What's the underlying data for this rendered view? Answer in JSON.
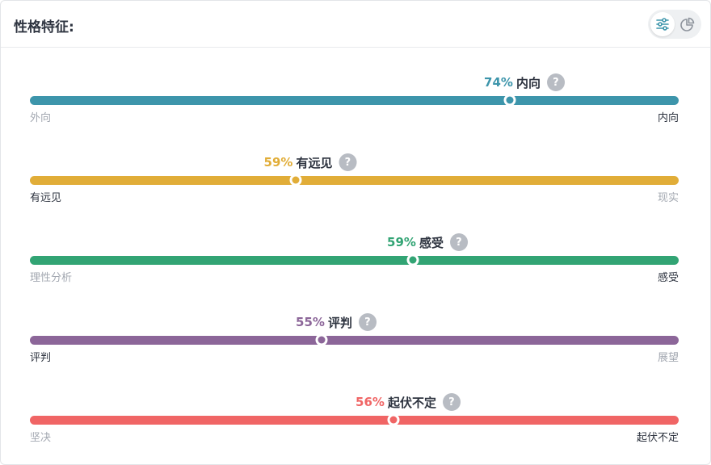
{
  "header": {
    "title": "性格特征:",
    "view_buttons": [
      {
        "icon": "sliders-icon",
        "active": true
      },
      {
        "icon": "pie-chart-icon",
        "active": false
      }
    ]
  },
  "traits": [
    {
      "percent": "74%",
      "value": 0.74,
      "label": "内向",
      "left": "外向",
      "right": "内向",
      "color": "#3d95ab",
      "emphasis": "right"
    },
    {
      "percent": "59%",
      "value": 0.41,
      "label": "有远见",
      "left": "有远见",
      "right": "现实",
      "color": "#e1ad38",
      "emphasis": "left"
    },
    {
      "percent": "59%",
      "value": 0.59,
      "label": "感受",
      "left": "理性分析",
      "right": "感受",
      "color": "#32a474",
      "emphasis": "right"
    },
    {
      "percent": "55%",
      "value": 0.45,
      "label": "评判",
      "left": "评判",
      "right": "展望",
      "color": "#8c6699",
      "emphasis": "left"
    },
    {
      "percent": "56%",
      "value": 0.56,
      "label": "起伏不定",
      "left": "坚决",
      "right": "起伏不定",
      "color": "#f06565",
      "emphasis": "right"
    }
  ],
  "help_glyph": "?"
}
